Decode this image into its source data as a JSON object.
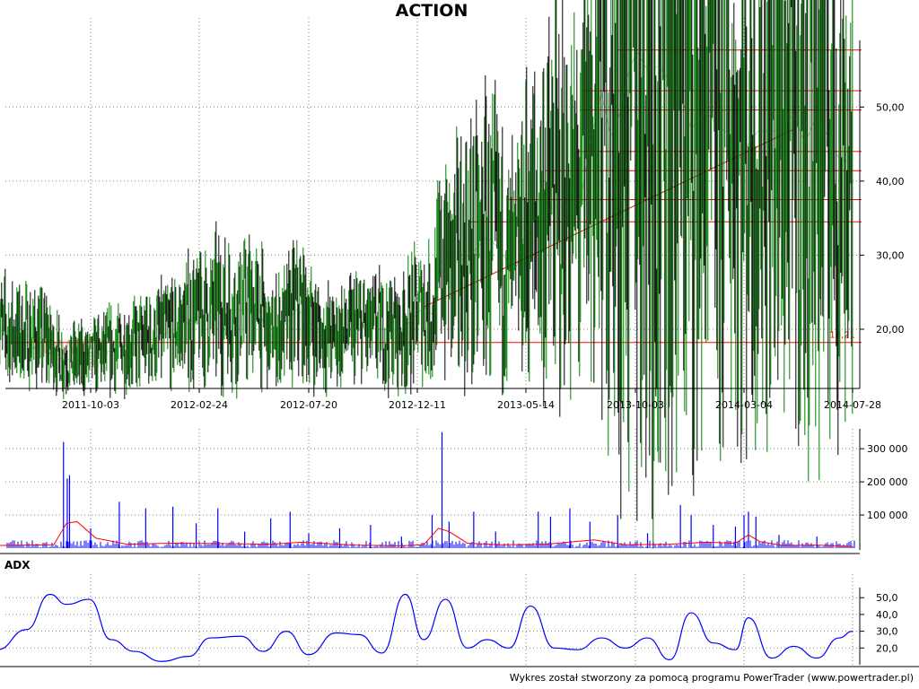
{
  "title": "ACTION",
  "footer": "Wykres został stworzony za pomocą programu PowerTrader (www.powertrader.pl)",
  "colors": {
    "candle_up": "#008000",
    "candle_down": "#000000",
    "support_lines": "#ff0000",
    "volume_bars": "#0000ff",
    "volume_ma": "#ff0000",
    "adx_line": "#0000ff",
    "grid": "#808080"
  },
  "chart_data": [
    {
      "type": "line",
      "name": "price",
      "x_ticks": [
        "2011-10-03",
        "2012-02-24",
        "2012-07-20",
        "2012-12-11",
        "2013-05-14",
        "2013-10-03",
        "2014-03-04",
        "2014-07-28"
      ],
      "y_ticks": [
        "20,00",
        "30,00",
        "40,00",
        "50,00"
      ],
      "ylim": [
        12,
        59
      ],
      "grid": true,
      "series": [
        {
          "x": [
            "2011-06-01",
            "2011-07-01",
            "2011-08-05",
            "2011-08-25",
            "2011-09-20",
            "2011-10-20",
            "2011-11-20",
            "2011-12-20",
            "2012-01-20",
            "2012-02-20",
            "2012-03-20",
            "2012-04-20",
            "2012-05-15",
            "2012-05-28",
            "2012-06-20",
            "2012-07-05",
            "2012-07-20",
            "2012-08-05",
            "2012-08-20",
            "2012-09-20",
            "2012-10-20",
            "2012-11-20",
            "2012-12-01",
            "2012-12-20",
            "2013-01-01",
            "2013-01-15",
            "2013-02-05",
            "2013-03-01",
            "2013-03-20",
            "2013-04-05",
            "2013-04-20",
            "2013-05-01",
            "2013-05-14",
            "2013-06-01",
            "2013-06-20",
            "2013-07-10",
            "2013-07-25",
            "2013-08-05",
            "2013-08-20",
            "2013-09-01",
            "2013-09-10",
            "2013-09-25",
            "2013-10-05",
            "2013-10-20",
            "2013-11-05",
            "2013-11-20",
            "2013-12-05",
            "2013-12-20",
            "2014-01-10",
            "2014-01-25",
            "2014-02-10",
            "2014-02-25",
            "2014-03-10",
            "2014-03-25",
            "2014-04-10",
            "2014-04-25",
            "2014-05-10",
            "2014-05-25",
            "2014-06-10",
            "2014-06-25",
            "2014-07-10",
            "2014-07-28"
          ],
          "y": [
            20.0,
            19.3,
            18.5,
            16.0,
            15.8,
            16.8,
            17.8,
            18.5,
            19.8,
            21.5,
            22.8,
            22.6,
            22.4,
            18.8,
            20.8,
            22.8,
            21.0,
            19.2,
            19.0,
            20.0,
            20.0,
            19.8,
            21.0,
            23.0,
            22.0,
            29.0,
            29.0,
            30.5,
            32.5,
            31.0,
            28.8,
            28.5,
            33.5,
            35.5,
            36.5,
            36.5,
            38.0,
            45.0,
            52.0,
            46.0,
            48.0,
            55.0,
            57.5,
            55.0,
            55.5,
            53.5,
            52.0,
            47.0,
            49.5,
            47.5,
            46.5,
            43.0,
            45.0,
            47.0,
            46.5,
            47.5,
            49.0,
            45.0,
            49.0,
            46.0,
            43.0,
            42.5
          ]
        }
      ],
      "horizontal_levels": [
        57.7,
        52.2,
        49.6,
        44.0,
        41.4,
        37.5,
        34.5,
        18.21
      ],
      "annotations": [
        {
          "text": "18,21",
          "y": 18.21
        }
      ],
      "trendline": {
        "from": [
          "2012-12-20",
          23.0
        ],
        "to": [
          "2014-05-10",
          47.0
        ]
      }
    },
    {
      "type": "bar",
      "name": "volume",
      "y_ticks": [
        "100 000",
        "200 000",
        "300 000"
      ],
      "ylim": [
        0,
        360000
      ],
      "spikes": [
        {
          "x": "2011-08-28",
          "value": 320000
        },
        {
          "x": "2011-09-02",
          "value": 210000
        },
        {
          "x": "2011-09-05",
          "value": 220000
        },
        {
          "x": "2011-10-03",
          "value": 60000
        },
        {
          "x": "2011-11-10",
          "value": 140000
        },
        {
          "x": "2011-12-15",
          "value": 120000
        },
        {
          "x": "2012-01-20",
          "value": 125000
        },
        {
          "x": "2012-02-20",
          "value": 75000
        },
        {
          "x": "2012-03-20",
          "value": 120000
        },
        {
          "x": "2012-04-25",
          "value": 50000
        },
        {
          "x": "2012-05-30",
          "value": 90000
        },
        {
          "x": "2012-06-25",
          "value": 110000
        },
        {
          "x": "2012-07-20",
          "value": 45000
        },
        {
          "x": "2012-08-30",
          "value": 60000
        },
        {
          "x": "2012-10-10",
          "value": 70000
        },
        {
          "x": "2012-11-20",
          "value": 35000
        },
        {
          "x": "2013-01-01",
          "value": 100000
        },
        {
          "x": "2013-01-15",
          "value": 350000
        },
        {
          "x": "2013-01-25",
          "value": 80000
        },
        {
          "x": "2013-03-01",
          "value": 110000
        },
        {
          "x": "2013-04-01",
          "value": 50000
        },
        {
          "x": "2013-05-30",
          "value": 110000
        },
        {
          "x": "2013-06-15",
          "value": 95000
        },
        {
          "x": "2013-07-10",
          "value": 120000
        },
        {
          "x": "2013-08-05",
          "value": 80000
        },
        {
          "x": "2013-09-10",
          "value": 100000
        },
        {
          "x": "2013-10-20",
          "value": 45000
        },
        {
          "x": "2013-12-05",
          "value": 130000
        },
        {
          "x": "2013-12-20",
          "value": 100000
        },
        {
          "x": "2014-01-20",
          "value": 70000
        },
        {
          "x": "2014-02-20",
          "value": 65000
        },
        {
          "x": "2014-03-04",
          "value": 100000
        },
        {
          "x": "2014-03-10",
          "value": 110000
        },
        {
          "x": "2014-03-20",
          "value": 95000
        },
        {
          "x": "2014-04-20",
          "value": 40000
        },
        {
          "x": "2014-06-10",
          "value": 35000
        }
      ],
      "series": [
        {
          "x": [
            "2011-06-01",
            "2011-08-15",
            "2011-09-01",
            "2011-09-15",
            "2011-10-10",
            "2011-11-20",
            "2012-01-20",
            "2012-03-20",
            "2012-05-30",
            "2012-07-10",
            "2012-09-20",
            "2012-11-20",
            "2012-12-20",
            "2013-01-10",
            "2013-01-25",
            "2013-02-20",
            "2013-04-10",
            "2013-06-10",
            "2013-08-10",
            "2013-09-20",
            "2013-11-20",
            "2014-01-10",
            "2014-02-20",
            "2014-03-10",
            "2014-03-25",
            "2014-04-25",
            "2014-06-10",
            "2014-07-28"
          ],
          "y": [
            8000,
            10000,
            75000,
            80000,
            30000,
            12000,
            15000,
            14000,
            12000,
            18000,
            9000,
            7000,
            10000,
            60000,
            50000,
            15000,
            10000,
            12000,
            25000,
            10000,
            12000,
            18000,
            15000,
            40000,
            20000,
            8000,
            9000,
            5000
          ]
        }
      ]
    },
    {
      "type": "line",
      "name": "ADX",
      "y_ticks": [
        "20,0",
        "30,0",
        "40,0",
        "50,0"
      ],
      "ylim": [
        10,
        56
      ],
      "series": [
        {
          "x": [
            "2011-06-01",
            "2011-07-10",
            "2011-08-10",
            "2011-09-01",
            "2011-10-01",
            "2011-10-30",
            "2011-11-30",
            "2012-01-05",
            "2012-02-10",
            "2012-03-10",
            "2012-04-20",
            "2012-05-20",
            "2012-06-20",
            "2012-07-20",
            "2012-08-25",
            "2012-09-25",
            "2012-10-25",
            "2012-11-25",
            "2012-12-20",
            "2013-01-20",
            "2013-02-20",
            "2013-03-20",
            "2013-04-20",
            "2013-05-20",
            "2013-06-20",
            "2013-07-20",
            "2013-08-20",
            "2013-09-20",
            "2013-10-20",
            "2013-11-20",
            "2013-12-20",
            "2014-01-20",
            "2014-02-20",
            "2014-03-10",
            "2014-04-10",
            "2014-05-10",
            "2014-06-10",
            "2014-07-10",
            "2014-07-28"
          ],
          "y": [
            19,
            31,
            52,
            46,
            49,
            25,
            18,
            12,
            15,
            26,
            27,
            18,
            30,
            16,
            29,
            28,
            17,
            52,
            25,
            49,
            20,
            25,
            20,
            45,
            20,
            19,
            26,
            20,
            26,
            13,
            41,
            23,
            19,
            38,
            14,
            21,
            14,
            26,
            30
          ]
        }
      ]
    }
  ]
}
